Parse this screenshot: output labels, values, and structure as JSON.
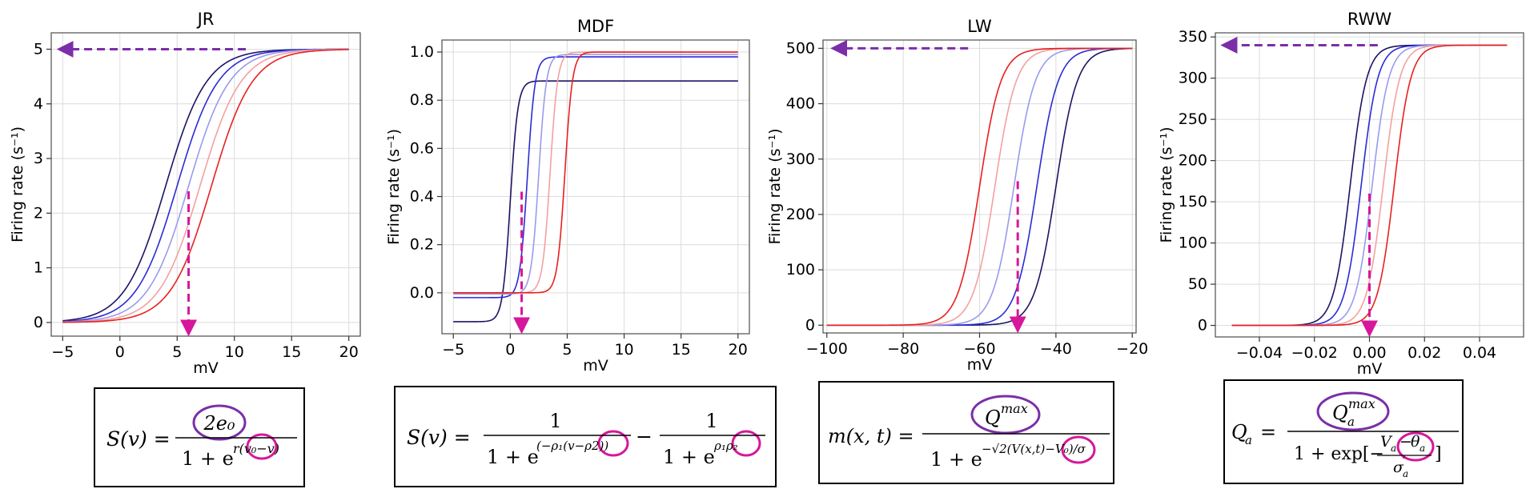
{
  "colors": {
    "curves": [
      "#1b1464",
      "#2b2bd6",
      "#9a9aef",
      "#f4a0a0",
      "#e8201e"
    ],
    "purple_arrow": "#7b2ea8",
    "magenta_arrow": "#d6179a",
    "circle_purple": "#7b2ea8",
    "circle_magenta": "#d6179a"
  },
  "chart_data": [
    {
      "type": "line",
      "title": "JR",
      "xlabel": "mV",
      "ylabel": "Firing rate  (s⁻¹)",
      "xlim": [
        -6,
        21
      ],
      "ylim": [
        -0.25,
        5.3
      ],
      "xticks": [
        -5,
        0,
        5,
        10,
        15,
        20
      ],
      "yticks": [
        0,
        1,
        2,
        3,
        4,
        5
      ],
      "xticklabels": [
        "−5",
        "0",
        "5",
        "10",
        "15",
        "20"
      ],
      "yticklabels": [
        "0",
        "1",
        "2",
        "3",
        "4",
        "5"
      ],
      "grid": true,
      "x": [
        -5,
        20
      ],
      "model": "jr",
      "series": [
        {
          "values": {
            "max": 5,
            "r": 0.56,
            "v0": 4.0
          }
        },
        {
          "values": {
            "max": 5,
            "r": 0.56,
            "v0": 5.0
          }
        },
        {
          "values": {
            "max": 5,
            "r": 0.56,
            "v0": 6.0
          }
        },
        {
          "values": {
            "max": 5,
            "r": 0.56,
            "v0": 7.0
          }
        },
        {
          "values": {
            "max": 5,
            "r": 0.56,
            "v0": 8.0
          }
        }
      ],
      "annotations": {
        "h_arrow": {
          "y": 5,
          "x_from": 11,
          "x_to": -5.5
        },
        "v_arrow": {
          "x": 6,
          "y_from": 2.4,
          "y_to": -0.25
        }
      }
    },
    {
      "type": "line",
      "title": "MDF",
      "xlabel": "mV",
      "ylabel": "Firing rate  (s⁻¹)",
      "xlim": [
        -6,
        21
      ],
      "ylim": [
        -0.17,
        1.05
      ],
      "xticks": [
        -5,
        0,
        5,
        10,
        15,
        20
      ],
      "yticks": [
        0,
        0.2,
        0.4,
        0.6,
        0.8,
        1.0
      ],
      "xticklabels": [
        "−5",
        "0",
        "5",
        "10",
        "15",
        "20"
      ],
      "yticklabels": [
        "0.0",
        "0.2",
        "0.4",
        "0.6",
        "0.8",
        "1.0"
      ],
      "grid": true,
      "x": [
        -5,
        20
      ],
      "model": "mdf",
      "series": [
        {
          "values": {
            "rho1": 3.0,
            "rho2": 0.0,
            "top": 0.88,
            "bottom": -0.12
          }
        },
        {
          "values": {
            "rho1": 3.0,
            "rho2": 1.5,
            "top": 0.98,
            "bottom": -0.02
          }
        },
        {
          "values": {
            "rho1": 3.0,
            "rho2": 2.5,
            "top": 0.99,
            "bottom": -0.005
          }
        },
        {
          "values": {
            "rho1": 3.0,
            "rho2": 3.5,
            "top": 1.0,
            "bottom": 0.0
          }
        },
        {
          "values": {
            "rho1": 3.0,
            "rho2": 4.8,
            "top": 1.0,
            "bottom": 0.0
          }
        }
      ],
      "annotations": {
        "v_arrow": {
          "x": 1,
          "y_from": 0.42,
          "y_to": -0.17
        }
      }
    },
    {
      "type": "line",
      "title": "LW",
      "xlabel": "mV",
      "ylabel": "Firing rate  (s⁻¹)",
      "xlim": [
        -101,
        -19
      ],
      "ylim": [
        -14,
        515
      ],
      "xticks": [
        -100,
        -80,
        -60,
        -40,
        -20
      ],
      "yticks": [
        0,
        100,
        200,
        300,
        400,
        500
      ],
      "xticklabels": [
        "−100",
        "−80",
        "−60",
        "−40",
        "−20"
      ],
      "yticklabels": [
        "0",
        "100",
        "200",
        "300",
        "400",
        "500"
      ],
      "grid": true,
      "x": [
        -100,
        -20
      ],
      "model": "lw",
      "series": [
        {
          "values": {
            "max": 500,
            "v0": -40,
            "s": 2.8
          }
        },
        {
          "values": {
            "max": 500,
            "v0": -45,
            "s": 2.8
          }
        },
        {
          "values": {
            "max": 500,
            "v0": -51,
            "s": 2.8
          }
        },
        {
          "values": {
            "max": 500,
            "v0": -56,
            "s": 2.8
          }
        },
        {
          "values": {
            "max": 500,
            "v0": -60,
            "s": 2.8
          }
        }
      ],
      "annotations": {
        "h_arrow": {
          "y": 500,
          "x_from": -63,
          "x_to": -99
        },
        "v_arrow": {
          "x": -50,
          "y_from": 260,
          "y_to": -14
        }
      }
    },
    {
      "type": "line",
      "title": "RWW",
      "xlabel": "mV",
      "ylabel": "Firing rate  (s⁻¹)",
      "xlim": [
        -0.056,
        0.056
      ],
      "ylim": [
        -14,
        355
      ],
      "xticks": [
        -0.04,
        -0.02,
        0.0,
        0.02,
        0.04
      ],
      "yticks": [
        0,
        50,
        100,
        150,
        200,
        250,
        300,
        350
      ],
      "xticklabels": [
        "−0.04",
        "−0.02",
        "0.00",
        "0.02",
        "0.04"
      ],
      "yticklabels": [
        "0",
        "50",
        "100",
        "150",
        "200",
        "250",
        "300",
        "350"
      ],
      "grid": true,
      "x": [
        -0.05,
        0.05
      ],
      "model": "rww",
      "series": [
        {
          "values": {
            "max": 340,
            "theta": -0.007,
            "s": 0.003
          }
        },
        {
          "values": {
            "max": 340,
            "theta": -0.003,
            "s": 0.003
          }
        },
        {
          "values": {
            "max": 340,
            "theta": 0.001,
            "s": 0.003
          }
        },
        {
          "values": {
            "max": 340,
            "theta": 0.005,
            "s": 0.003
          }
        },
        {
          "values": {
            "max": 340,
            "theta": 0.009,
            "s": 0.003
          }
        }
      ],
      "annotations": {
        "h_arrow": {
          "y": 340,
          "x_from": 0.003,
          "x_to": -0.054
        },
        "v_arrow": {
          "x": 0.0,
          "y_from": 160,
          "y_to": -14
        }
      }
    }
  ],
  "equations": [
    {
      "lhs": "S(v) =",
      "numerator": "2e₀",
      "denominator": "1 + e",
      "exponent": "r(v₀−v)"
    },
    {
      "lhs": "S(v) =",
      "term1_num": "1",
      "term1_den": "1 + e",
      "term1_exp": "(−ρ₁(v−ρ2))",
      "minus": "−",
      "term2_num": "1",
      "term2_den": "1 + e",
      "term2_exp": "ρ₁ρ₂"
    },
    {
      "lhs": "m(x, t) =",
      "numerator": "Q",
      "numerator_sup": "max",
      "denominator": "1 + e",
      "exponent": "−√2(V(x,t)−V₀)/σ"
    },
    {
      "lhs": "Q",
      "lhs_sub": "a",
      "lhs_eq": "=",
      "numerator": "Q",
      "numerator_sub": "a",
      "numerator_sup": "max",
      "denominator": "1 + exp[−",
      "inner_num": "V",
      "inner_num_sub": "a",
      "inner_minus": "−",
      "inner_theta": "θ",
      "inner_theta_sub": "a",
      "inner_den": "σ",
      "inner_den_sub": "a",
      "inner_den_sup": "′",
      "close": "]"
    }
  ]
}
